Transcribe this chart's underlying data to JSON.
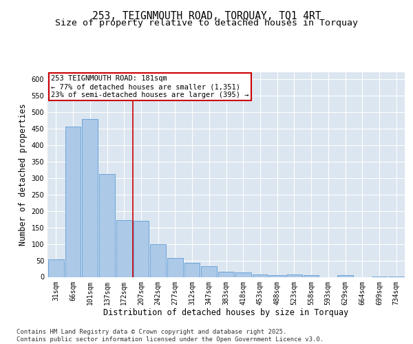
{
  "title1": "253, TEIGNMOUTH ROAD, TORQUAY, TQ1 4RT",
  "title2": "Size of property relative to detached houses in Torquay",
  "xlabel": "Distribution of detached houses by size in Torquay",
  "ylabel": "Number of detached properties",
  "bar_labels": [
    "31sqm",
    "66sqm",
    "101sqm",
    "137sqm",
    "172sqm",
    "207sqm",
    "242sqm",
    "277sqm",
    "312sqm",
    "347sqm",
    "383sqm",
    "418sqm",
    "453sqm",
    "488sqm",
    "523sqm",
    "558sqm",
    "593sqm",
    "629sqm",
    "664sqm",
    "699sqm",
    "734sqm"
  ],
  "bar_values": [
    54,
    455,
    478,
    311,
    172,
    170,
    100,
    58,
    42,
    33,
    15,
    14,
    7,
    5,
    7,
    5,
    0,
    5,
    0,
    1,
    1
  ],
  "bar_color": "#adc9e8",
  "bar_edgecolor": "#5b9bd5",
  "vline_x": 4.5,
  "vline_color": "#cc0000",
  "annotation_text": "253 TEIGNMOUTH ROAD: 181sqm\n← 77% of detached houses are smaller (1,351)\n23% of semi-detached houses are larger (395) →",
  "annotation_box_edgecolor": "#cc0000",
  "ylim": [
    0,
    620
  ],
  "yticks": [
    0,
    50,
    100,
    150,
    200,
    250,
    300,
    350,
    400,
    450,
    500,
    550,
    600
  ],
  "background_color": "#dce6f0",
  "footer_text": "Contains HM Land Registry data © Crown copyright and database right 2025.\nContains public sector information licensed under the Open Government Licence v3.0.",
  "title_fontsize": 10.5,
  "subtitle_fontsize": 9.5,
  "axis_label_fontsize": 8.5,
  "tick_fontsize": 7,
  "annotation_fontsize": 7.5,
  "footer_fontsize": 6.5
}
